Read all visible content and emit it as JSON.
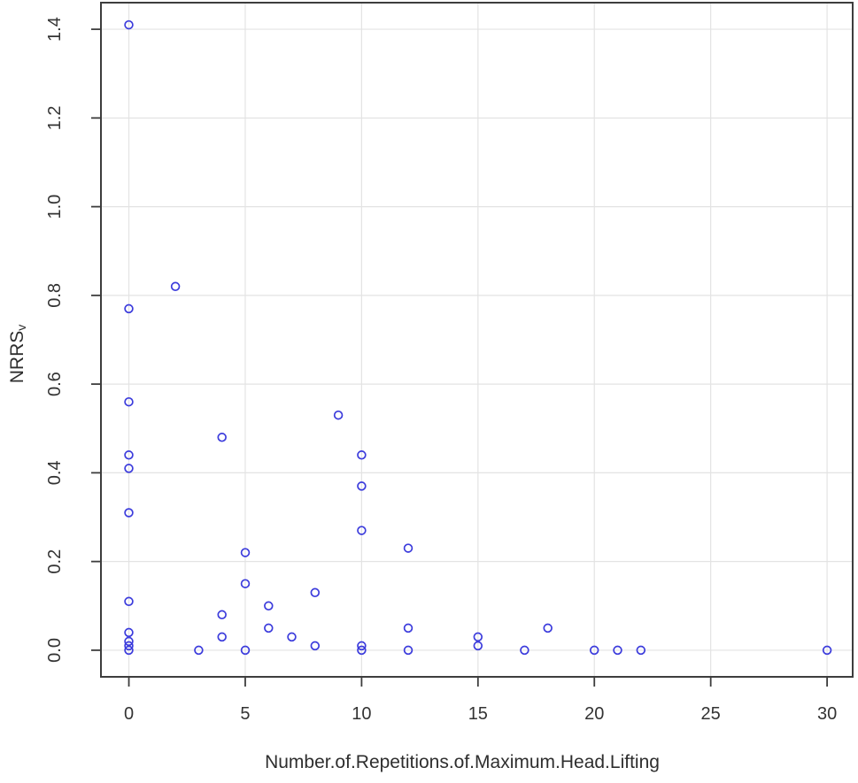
{
  "chart_data": {
    "type": "scatter",
    "title": "",
    "xlabel": "Number.of.Repetitions.of.Maximum.Head.Lifting",
    "ylabel_main": "NRRS",
    "ylabel_sub": "v",
    "xlim": [
      -1.2,
      31.1
    ],
    "ylim": [
      -0.06,
      1.46
    ],
    "xticks": [
      0,
      5,
      10,
      15,
      20,
      25,
      30
    ],
    "xtick_labels": [
      "0",
      "5",
      "10",
      "15",
      "20",
      "25",
      "30"
    ],
    "yticks": [
      0.0,
      0.2,
      0.4,
      0.6,
      0.8,
      1.0,
      1.2,
      1.4
    ],
    "ytick_labels": [
      "0.0",
      "0.2",
      "0.4",
      "0.6",
      "0.8",
      "1.0",
      "1.2",
      "1.4"
    ],
    "grid": true,
    "legend": "none",
    "marker": "open-circle",
    "point_color": "#3c3cdc",
    "grid_color": "#e3e3e3",
    "axis_color": "#3d3d3d",
    "points": [
      {
        "x": 0,
        "y": 1.41
      },
      {
        "x": 0,
        "y": 0.77
      },
      {
        "x": 0,
        "y": 0.56
      },
      {
        "x": 0,
        "y": 0.44
      },
      {
        "x": 0,
        "y": 0.41
      },
      {
        "x": 0,
        "y": 0.31
      },
      {
        "x": 0,
        "y": 0.11
      },
      {
        "x": 0,
        "y": 0.04
      },
      {
        "x": 0,
        "y": 0.02
      },
      {
        "x": 0,
        "y": 0.01
      },
      {
        "x": 0,
        "y": 0.0
      },
      {
        "x": 2,
        "y": 0.82
      },
      {
        "x": 3,
        "y": 0.0
      },
      {
        "x": 4,
        "y": 0.48
      },
      {
        "x": 4,
        "y": 0.08
      },
      {
        "x": 4,
        "y": 0.03
      },
      {
        "x": 5,
        "y": 0.22
      },
      {
        "x": 5,
        "y": 0.15
      },
      {
        "x": 5,
        "y": 0.0
      },
      {
        "x": 6,
        "y": 0.1
      },
      {
        "x": 6,
        "y": 0.05
      },
      {
        "x": 7,
        "y": 0.03
      },
      {
        "x": 8,
        "y": 0.13
      },
      {
        "x": 8,
        "y": 0.01
      },
      {
        "x": 9,
        "y": 0.53
      },
      {
        "x": 10,
        "y": 0.44
      },
      {
        "x": 10,
        "y": 0.37
      },
      {
        "x": 10,
        "y": 0.27
      },
      {
        "x": 10,
        "y": 0.01
      },
      {
        "x": 10,
        "y": 0.0
      },
      {
        "x": 12,
        "y": 0.23
      },
      {
        "x": 12,
        "y": 0.05
      },
      {
        "x": 12,
        "y": 0.0
      },
      {
        "x": 15,
        "y": 0.03
      },
      {
        "x": 15,
        "y": 0.01
      },
      {
        "x": 17,
        "y": 0.0
      },
      {
        "x": 18,
        "y": 0.05
      },
      {
        "x": 20,
        "y": 0.0
      },
      {
        "x": 21,
        "y": 0.0
      },
      {
        "x": 22,
        "y": 0.0
      },
      {
        "x": 30,
        "y": 0.0
      }
    ]
  }
}
